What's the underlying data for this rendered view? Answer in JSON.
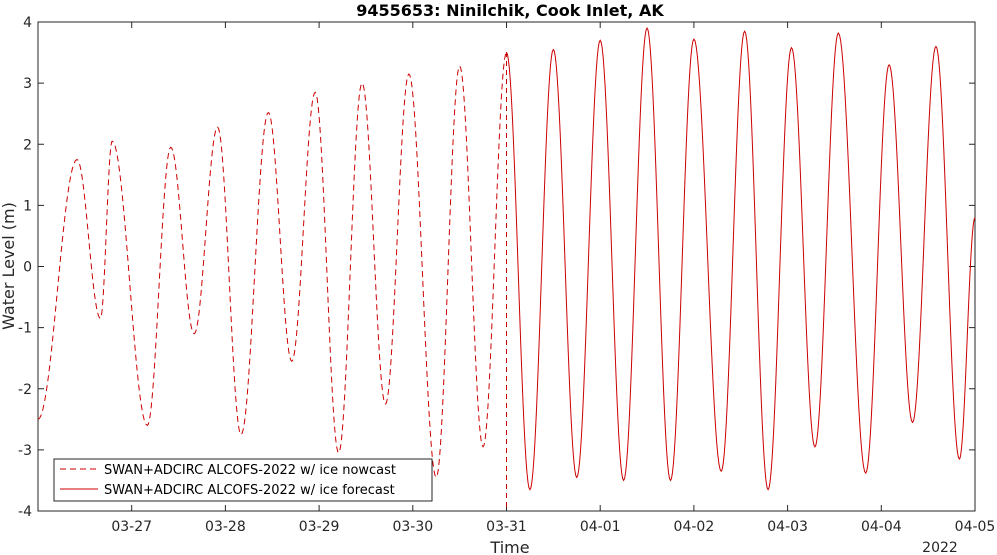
{
  "chart_data": {
    "type": "line",
    "title": "9455653: Ninilchik, Cook Inlet, AK",
    "xlabel": "Time",
    "ylabel": "Water Level (m)",
    "x_year_label": "2022",
    "xlim": [
      "2022-03-26T00:00",
      "2022-04-05T00:00"
    ],
    "ylim": [
      -4,
      4
    ],
    "y_ticks": [
      -4,
      -3,
      -2,
      -1,
      0,
      1,
      2,
      3,
      4
    ],
    "x_ticks": [
      "03-27",
      "03-28",
      "03-29",
      "03-30",
      "03-31",
      "04-01",
      "04-02",
      "04-03",
      "04-04",
      "04-05"
    ],
    "grid": false,
    "legend_position": "bottom-left",
    "vertical_marker": "2022-03-31T00:00",
    "series": [
      {
        "name": "SWAN+ADCIRC ALCOFS-2022 w/ ice nowcast",
        "color": "#cc0000",
        "style": "dashed",
        "extrema_x": [
          "2022-03-26T00:00",
          "2022-03-26T10:00",
          "2022-03-26T16:00",
          "2022-03-26T19:00",
          "2022-03-27T04:00",
          "2022-03-27T10:00",
          "2022-03-27T16:00",
          "2022-03-27T22:00",
          "2022-03-28T04:00",
          "2022-03-28T11:00",
          "2022-03-28T17:00",
          "2022-03-28T23:00",
          "2022-03-29T05:00",
          "2022-03-29T11:00",
          "2022-03-29T17:00",
          "2022-03-29T23:00",
          "2022-03-30T06:00",
          "2022-03-30T12:00",
          "2022-03-30T18:00",
          "2022-03-31T00:00"
        ],
        "extrema_y": [
          -2.5,
          1.75,
          -0.85,
          2.05,
          -2.6,
          1.95,
          -1.1,
          2.28,
          -2.75,
          2.52,
          -1.55,
          2.85,
          -3.05,
          3.0,
          -2.25,
          3.15,
          -3.45,
          3.28,
          -2.95,
          3.5
        ]
      },
      {
        "name": "SWAN+ADCIRC ALCOFS-2022 w/ ice forecast",
        "color": "#cc0000",
        "style": "solid",
        "extrema_x": [
          "2022-03-31T00:00",
          "2022-03-31T06:00",
          "2022-03-31T12:00",
          "2022-03-31T18:00",
          "2022-04-01T00:00",
          "2022-04-01T06:00",
          "2022-04-01T12:00",
          "2022-04-01T18:00",
          "2022-04-02T00:00",
          "2022-04-02T07:00",
          "2022-04-02T13:00",
          "2022-04-02T19:00",
          "2022-04-03T01:00",
          "2022-04-03T07:00",
          "2022-04-03T13:00",
          "2022-04-03T20:00",
          "2022-04-04T02:00",
          "2022-04-04T08:00",
          "2022-04-04T14:00",
          "2022-04-04T20:00",
          "2022-04-05T00:00"
        ],
        "extrema_y": [
          3.5,
          -3.65,
          3.55,
          -3.45,
          3.7,
          -3.5,
          3.9,
          -3.5,
          3.72,
          -3.35,
          3.85,
          -3.65,
          3.58,
          -2.95,
          3.82,
          -3.38,
          3.3,
          -2.55,
          3.6,
          -3.15,
          0.8
        ]
      }
    ]
  }
}
